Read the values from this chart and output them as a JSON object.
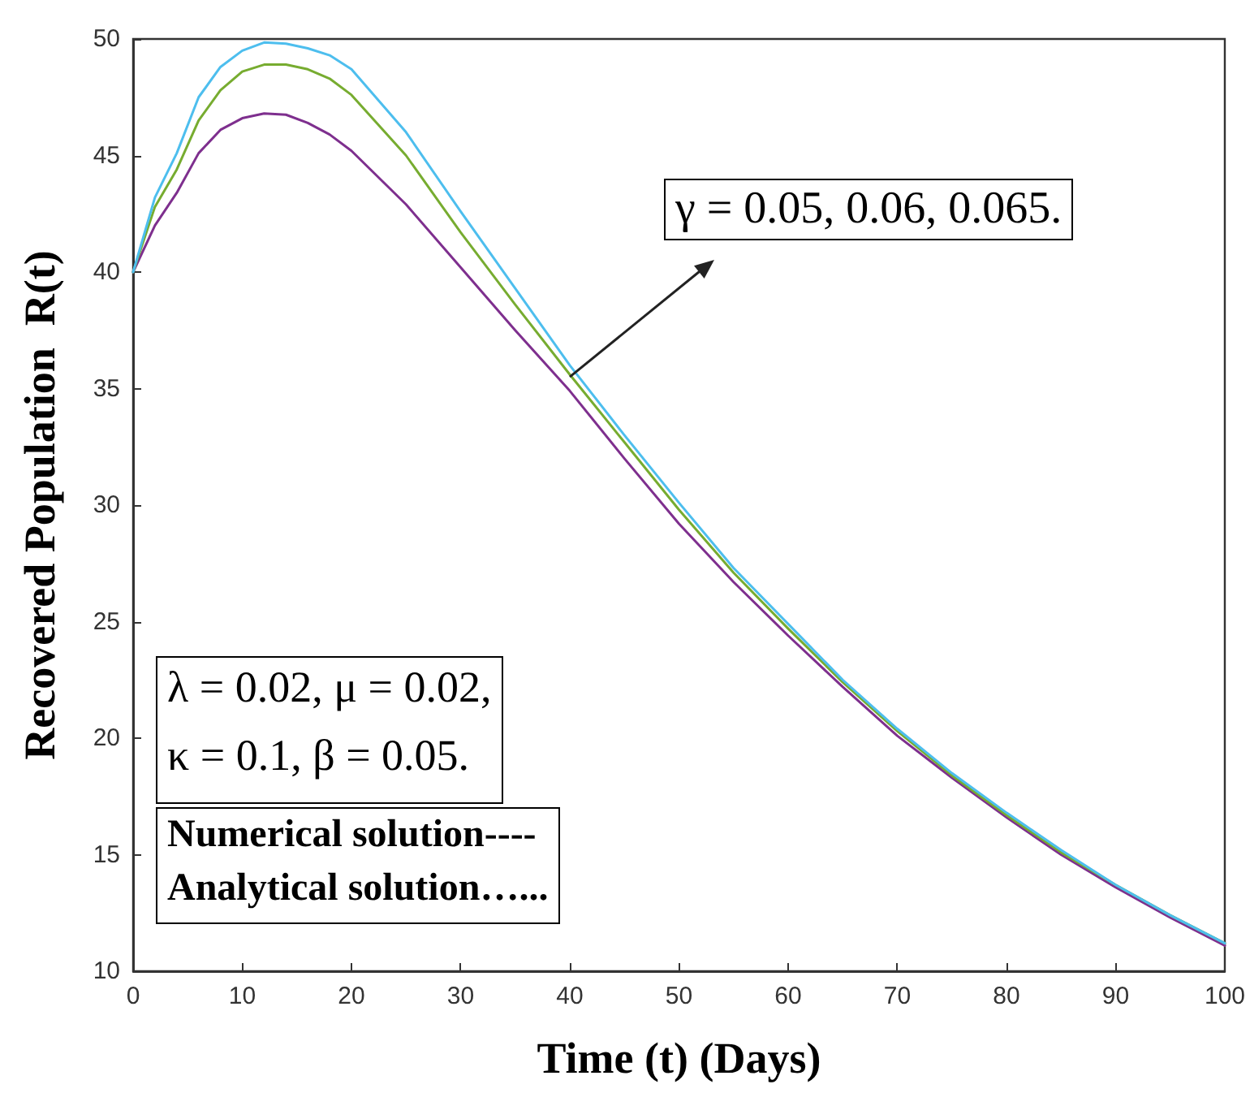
{
  "chart_data": {
    "type": "line",
    "xlabel": "Time (t) (Days)",
    "ylabel": "Recovered Population  R(t)",
    "x": [
      0,
      2,
      4,
      6,
      8,
      10,
      12,
      14,
      16,
      18,
      20,
      25,
      30,
      35,
      40,
      45,
      50,
      55,
      60,
      65,
      70,
      75,
      80,
      85,
      90,
      95,
      100
    ],
    "series": [
      {
        "color": "#7e2f8e",
        "values": [
          40,
          42.0,
          43.4,
          45.1,
          46.1,
          46.6,
          46.8,
          46.75,
          46.4,
          45.9,
          45.2,
          42.9,
          40.2,
          37.5,
          34.9,
          32.0,
          29.2,
          26.7,
          24.4,
          22.2,
          20.1,
          18.3,
          16.6,
          15.0,
          13.6,
          12.3,
          11.1
        ]
      },
      {
        "color": "#77ac30",
        "values": [
          40,
          42.8,
          44.4,
          46.5,
          47.8,
          48.6,
          48.9,
          48.9,
          48.7,
          48.3,
          47.6,
          45.0,
          41.7,
          38.6,
          35.6,
          32.7,
          29.8,
          27.1,
          24.7,
          22.4,
          20.3,
          18.4,
          16.7,
          15.1,
          13.7,
          12.4,
          11.2
        ]
      },
      {
        "color": "#4dbeee",
        "values": [
          40,
          43.2,
          45.1,
          47.5,
          48.8,
          49.5,
          49.85,
          49.8,
          49.6,
          49.3,
          48.7,
          46.0,
          42.6,
          39.3,
          36.0,
          33.0,
          30.1,
          27.3,
          24.9,
          22.5,
          20.4,
          18.5,
          16.8,
          15.2,
          13.7,
          12.4,
          11.2
        ]
      }
    ],
    "xlim": [
      0,
      100
    ],
    "xticks": [
      0,
      10,
      20,
      30,
      40,
      50,
      60,
      70,
      80,
      90,
      100
    ],
    "ylim": [
      10,
      50
    ],
    "yticks": [
      10,
      15,
      20,
      25,
      30,
      35,
      40,
      45,
      50
    ],
    "line_style": "solid",
    "annotations": [
      {
        "text": "γ = 0.05, 0.06, 0.065.",
        "x": 40,
        "y": 35.5
      },
      "λ = 0.02, μ = 0.02,",
      "κ = 0.1, β = 0.05.",
      "Numerical solution----",
      "Analytical solution…..."
    ]
  }
}
